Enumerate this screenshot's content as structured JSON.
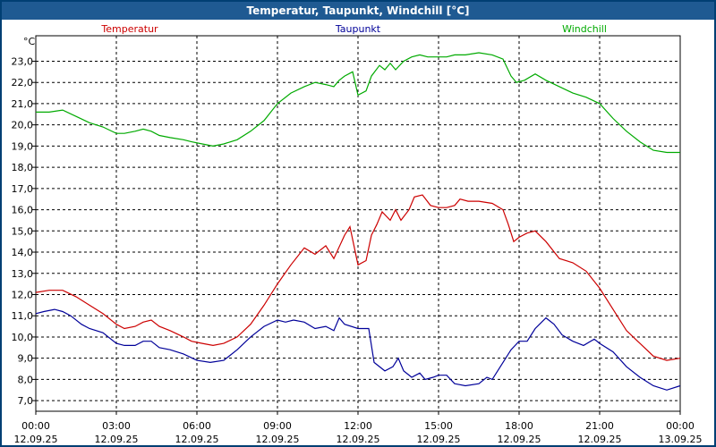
{
  "window": {
    "title": "Temperatur, Taupunkt, Windchill [°C]"
  },
  "chart_data": {
    "type": "line",
    "title": "Temperatur, Taupunkt, Windchill [°C]",
    "y_unit_label": "°C",
    "ylim": [
      6.5,
      24.2
    ],
    "y_ticks": [
      7.0,
      8.0,
      9.0,
      10.0,
      11.0,
      12.0,
      13.0,
      14.0,
      15.0,
      16.0,
      17.0,
      18.0,
      19.0,
      20.0,
      21.0,
      22.0,
      23.0
    ],
    "y_tick_labels": [
      "7,0",
      "8,0",
      "9,0",
      "10,0",
      "11,0",
      "12,0",
      "13,0",
      "14,0",
      "15,0",
      "16,0",
      "17,0",
      "18,0",
      "19,0",
      "20,0",
      "21,0",
      "22,0",
      "23,0"
    ],
    "xlim": [
      0,
      24
    ],
    "x_ticks": [
      {
        "hour": 0,
        "time": "00:00",
        "date": "12.09.25"
      },
      {
        "hour": 3,
        "time": "03:00",
        "date": "12.09.25"
      },
      {
        "hour": 6,
        "time": "06:00",
        "date": "12.09.25"
      },
      {
        "hour": 9,
        "time": "09:00",
        "date": "12.09.25"
      },
      {
        "hour": 12,
        "time": "12:00",
        "date": "12.09.25"
      },
      {
        "hour": 15,
        "time": "15:00",
        "date": "12.09.25"
      },
      {
        "hour": 18,
        "time": "18:00",
        "date": "12.09.25"
      },
      {
        "hour": 21,
        "time": "21:00",
        "date": "12.09.25"
      },
      {
        "hour": 24,
        "time": "00:00",
        "date": "13.09.25"
      }
    ],
    "grid": true,
    "series": [
      {
        "name": "Temperatur",
        "color": "#cc0000",
        "points": [
          [
            0,
            12.1
          ],
          [
            0.5,
            12.2
          ],
          [
            1,
            12.2
          ],
          [
            1.5,
            11.9
          ],
          [
            2,
            11.5
          ],
          [
            2.5,
            11.1
          ],
          [
            3,
            10.6
          ],
          [
            3.3,
            10.4
          ],
          [
            3.7,
            10.5
          ],
          [
            4,
            10.7
          ],
          [
            4.3,
            10.8
          ],
          [
            4.6,
            10.5
          ],
          [
            5,
            10.3
          ],
          [
            5.5,
            10.0
          ],
          [
            5.8,
            9.8
          ],
          [
            6.2,
            9.7
          ],
          [
            6.6,
            9.6
          ],
          [
            7,
            9.7
          ],
          [
            7.5,
            10.0
          ],
          [
            8,
            10.6
          ],
          [
            8.5,
            11.5
          ],
          [
            9,
            12.5
          ],
          [
            9.5,
            13.4
          ],
          [
            10,
            14.2
          ],
          [
            10.4,
            13.9
          ],
          [
            10.8,
            14.3
          ],
          [
            11.1,
            13.7
          ],
          [
            11.5,
            14.8
          ],
          [
            11.7,
            15.2
          ],
          [
            12,
            13.4
          ],
          [
            12.3,
            13.6
          ],
          [
            12.5,
            14.8
          ],
          [
            12.7,
            15.3
          ],
          [
            12.9,
            15.9
          ],
          [
            13.2,
            15.5
          ],
          [
            13.4,
            16.0
          ],
          [
            13.6,
            15.5
          ],
          [
            13.9,
            16.0
          ],
          [
            14.1,
            16.6
          ],
          [
            14.4,
            16.7
          ],
          [
            14.7,
            16.2
          ],
          [
            15,
            16.1
          ],
          [
            15.3,
            16.1
          ],
          [
            15.6,
            16.2
          ],
          [
            15.8,
            16.5
          ],
          [
            16.1,
            16.4
          ],
          [
            16.5,
            16.4
          ],
          [
            17,
            16.3
          ],
          [
            17.4,
            16.0
          ],
          [
            17.6,
            15.3
          ],
          [
            17.8,
            14.5
          ],
          [
            18,
            14.7
          ],
          [
            18.3,
            14.9
          ],
          [
            18.6,
            15.0
          ],
          [
            19,
            14.5
          ],
          [
            19.5,
            13.7
          ],
          [
            20,
            13.5
          ],
          [
            20.5,
            13.1
          ],
          [
            21,
            12.3
          ],
          [
            21.5,
            11.3
          ],
          [
            22,
            10.3
          ],
          [
            22.5,
            9.7
          ],
          [
            23,
            9.1
          ],
          [
            23.5,
            8.9
          ],
          [
            24,
            9.0
          ]
        ]
      },
      {
        "name": "Taupunkt",
        "color": "#000099",
        "points": [
          [
            0,
            11.1
          ],
          [
            0.3,
            11.2
          ],
          [
            0.7,
            11.3
          ],
          [
            1,
            11.2
          ],
          [
            1.3,
            11.0
          ],
          [
            1.7,
            10.6
          ],
          [
            2,
            10.4
          ],
          [
            2.5,
            10.2
          ],
          [
            3,
            9.7
          ],
          [
            3.3,
            9.6
          ],
          [
            3.7,
            9.6
          ],
          [
            4,
            9.8
          ],
          [
            4.3,
            9.8
          ],
          [
            4.6,
            9.5
          ],
          [
            5,
            9.4
          ],
          [
            5.5,
            9.2
          ],
          [
            6,
            8.9
          ],
          [
            6.5,
            8.8
          ],
          [
            7,
            8.9
          ],
          [
            7.5,
            9.4
          ],
          [
            8,
            10.0
          ],
          [
            8.5,
            10.5
          ],
          [
            9,
            10.8
          ],
          [
            9.3,
            10.7
          ],
          [
            9.6,
            10.8
          ],
          [
            10,
            10.7
          ],
          [
            10.4,
            10.4
          ],
          [
            10.8,
            10.5
          ],
          [
            11.1,
            10.3
          ],
          [
            11.3,
            10.9
          ],
          [
            11.5,
            10.6
          ],
          [
            12,
            10.4
          ],
          [
            12.4,
            10.4
          ],
          [
            12.6,
            8.8
          ],
          [
            13,
            8.4
          ],
          [
            13.3,
            8.6
          ],
          [
            13.5,
            9.0
          ],
          [
            13.7,
            8.4
          ],
          [
            14,
            8.1
          ],
          [
            14.3,
            8.3
          ],
          [
            14.5,
            8.0
          ],
          [
            14.8,
            8.1
          ],
          [
            15,
            8.2
          ],
          [
            15.3,
            8.2
          ],
          [
            15.6,
            7.8
          ],
          [
            16,
            7.7
          ],
          [
            16.5,
            7.8
          ],
          [
            16.8,
            8.1
          ],
          [
            17,
            8.0
          ],
          [
            17.3,
            8.6
          ],
          [
            17.7,
            9.4
          ],
          [
            18,
            9.8
          ],
          [
            18.3,
            9.8
          ],
          [
            18.6,
            10.4
          ],
          [
            19,
            10.9
          ],
          [
            19.3,
            10.6
          ],
          [
            19.6,
            10.1
          ],
          [
            20,
            9.8
          ],
          [
            20.4,
            9.6
          ],
          [
            20.8,
            9.9
          ],
          [
            21,
            9.7
          ],
          [
            21.5,
            9.3
          ],
          [
            22,
            8.6
          ],
          [
            22.5,
            8.1
          ],
          [
            23,
            7.7
          ],
          [
            23.5,
            7.5
          ],
          [
            24,
            7.7
          ]
        ]
      },
      {
        "name": "Windchill",
        "color": "#00aa00",
        "points": [
          [
            0,
            20.6
          ],
          [
            0.5,
            20.6
          ],
          [
            1,
            20.7
          ],
          [
            1.5,
            20.4
          ],
          [
            2,
            20.1
          ],
          [
            2.5,
            19.9
          ],
          [
            3,
            19.6
          ],
          [
            3.3,
            19.6
          ],
          [
            3.7,
            19.7
          ],
          [
            4,
            19.8
          ],
          [
            4.3,
            19.7
          ],
          [
            4.6,
            19.5
          ],
          [
            5,
            19.4
          ],
          [
            5.5,
            19.3
          ],
          [
            5.8,
            19.2
          ],
          [
            6.2,
            19.1
          ],
          [
            6.6,
            19.0
          ],
          [
            7,
            19.1
          ],
          [
            7.5,
            19.3
          ],
          [
            8,
            19.7
          ],
          [
            8.5,
            20.2
          ],
          [
            9,
            21.0
          ],
          [
            9.5,
            21.5
          ],
          [
            10,
            21.8
          ],
          [
            10.4,
            22.0
          ],
          [
            10.8,
            21.9
          ],
          [
            11.1,
            21.8
          ],
          [
            11.3,
            22.1
          ],
          [
            11.5,
            22.3
          ],
          [
            11.8,
            22.5
          ],
          [
            12,
            21.4
          ],
          [
            12.3,
            21.6
          ],
          [
            12.5,
            22.3
          ],
          [
            12.8,
            22.8
          ],
          [
            13,
            22.6
          ],
          [
            13.2,
            22.9
          ],
          [
            13.4,
            22.6
          ],
          [
            13.7,
            23.0
          ],
          [
            14,
            23.2
          ],
          [
            14.3,
            23.3
          ],
          [
            14.6,
            23.2
          ],
          [
            15,
            23.2
          ],
          [
            15.3,
            23.2
          ],
          [
            15.6,
            23.3
          ],
          [
            16,
            23.3
          ],
          [
            16.5,
            23.4
          ],
          [
            17,
            23.3
          ],
          [
            17.4,
            23.1
          ],
          [
            17.7,
            22.3
          ],
          [
            17.9,
            22.0
          ],
          [
            18.2,
            22.1
          ],
          [
            18.6,
            22.4
          ],
          [
            19,
            22.1
          ],
          [
            19.5,
            21.8
          ],
          [
            20,
            21.5
          ],
          [
            20.5,
            21.3
          ],
          [
            21,
            21.0
          ],
          [
            21.5,
            20.3
          ],
          [
            22,
            19.7
          ],
          [
            22.5,
            19.2
          ],
          [
            23,
            18.8
          ],
          [
            23.5,
            18.7
          ],
          [
            24,
            18.7
          ]
        ]
      }
    ]
  }
}
